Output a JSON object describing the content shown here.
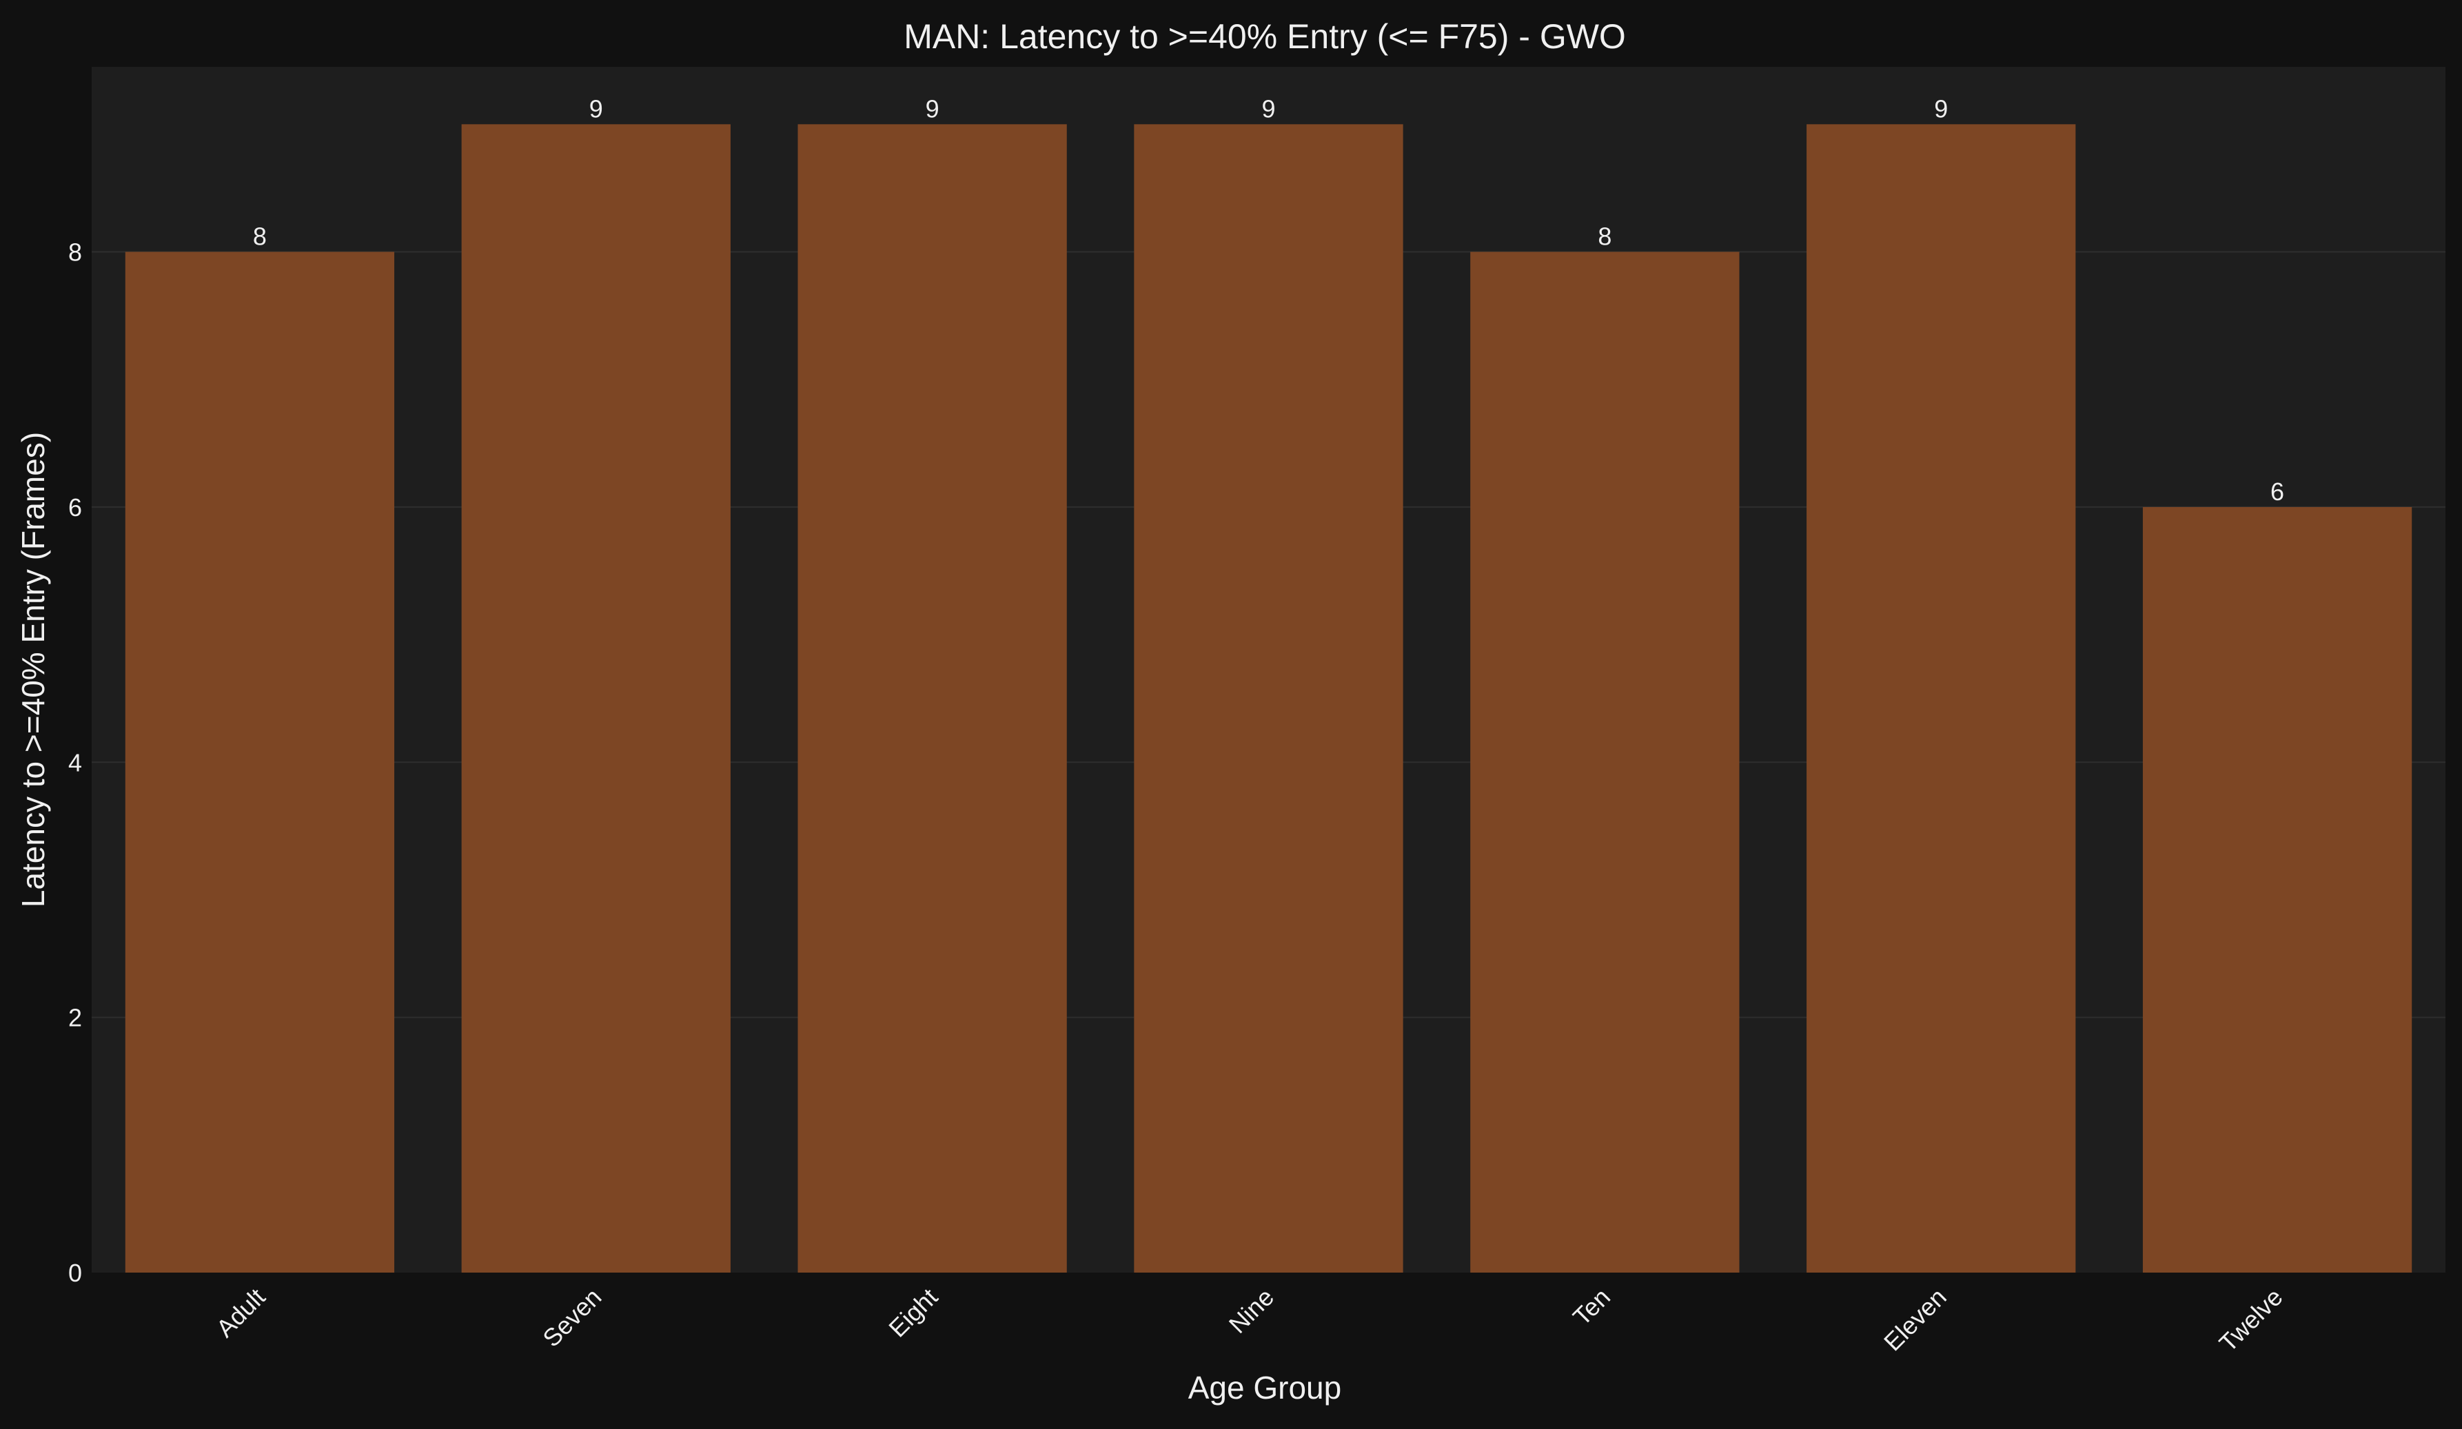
{
  "chart_data": {
    "type": "bar",
    "title": "MAN: Latency to >=40% Entry (<= F75) - GWO",
    "xlabel": "Age Group",
    "ylabel": "Latency to >=40% Entry (Frames)",
    "categories": [
      "Adult",
      "Seven",
      "Eight",
      "Nine",
      "Ten",
      "Eleven",
      "Twelve"
    ],
    "values": [
      8,
      9,
      9,
      9,
      8,
      9,
      6
    ],
    "data_labels": [
      "8",
      "9",
      "9",
      "9",
      "8",
      "9",
      "6"
    ],
    "ylim": [
      0,
      9.45
    ],
    "yticks": [
      0,
      2,
      4,
      6,
      8
    ],
    "ytick_labels": [
      "0",
      "2",
      "4",
      "6",
      "8"
    ],
    "grid": true,
    "colors": {
      "figure_background": "#111111",
      "plot_background": "#1e1e1e",
      "bar": "#7d4624",
      "grid": "#2e2e2e",
      "text": "#f0f0f0"
    }
  }
}
